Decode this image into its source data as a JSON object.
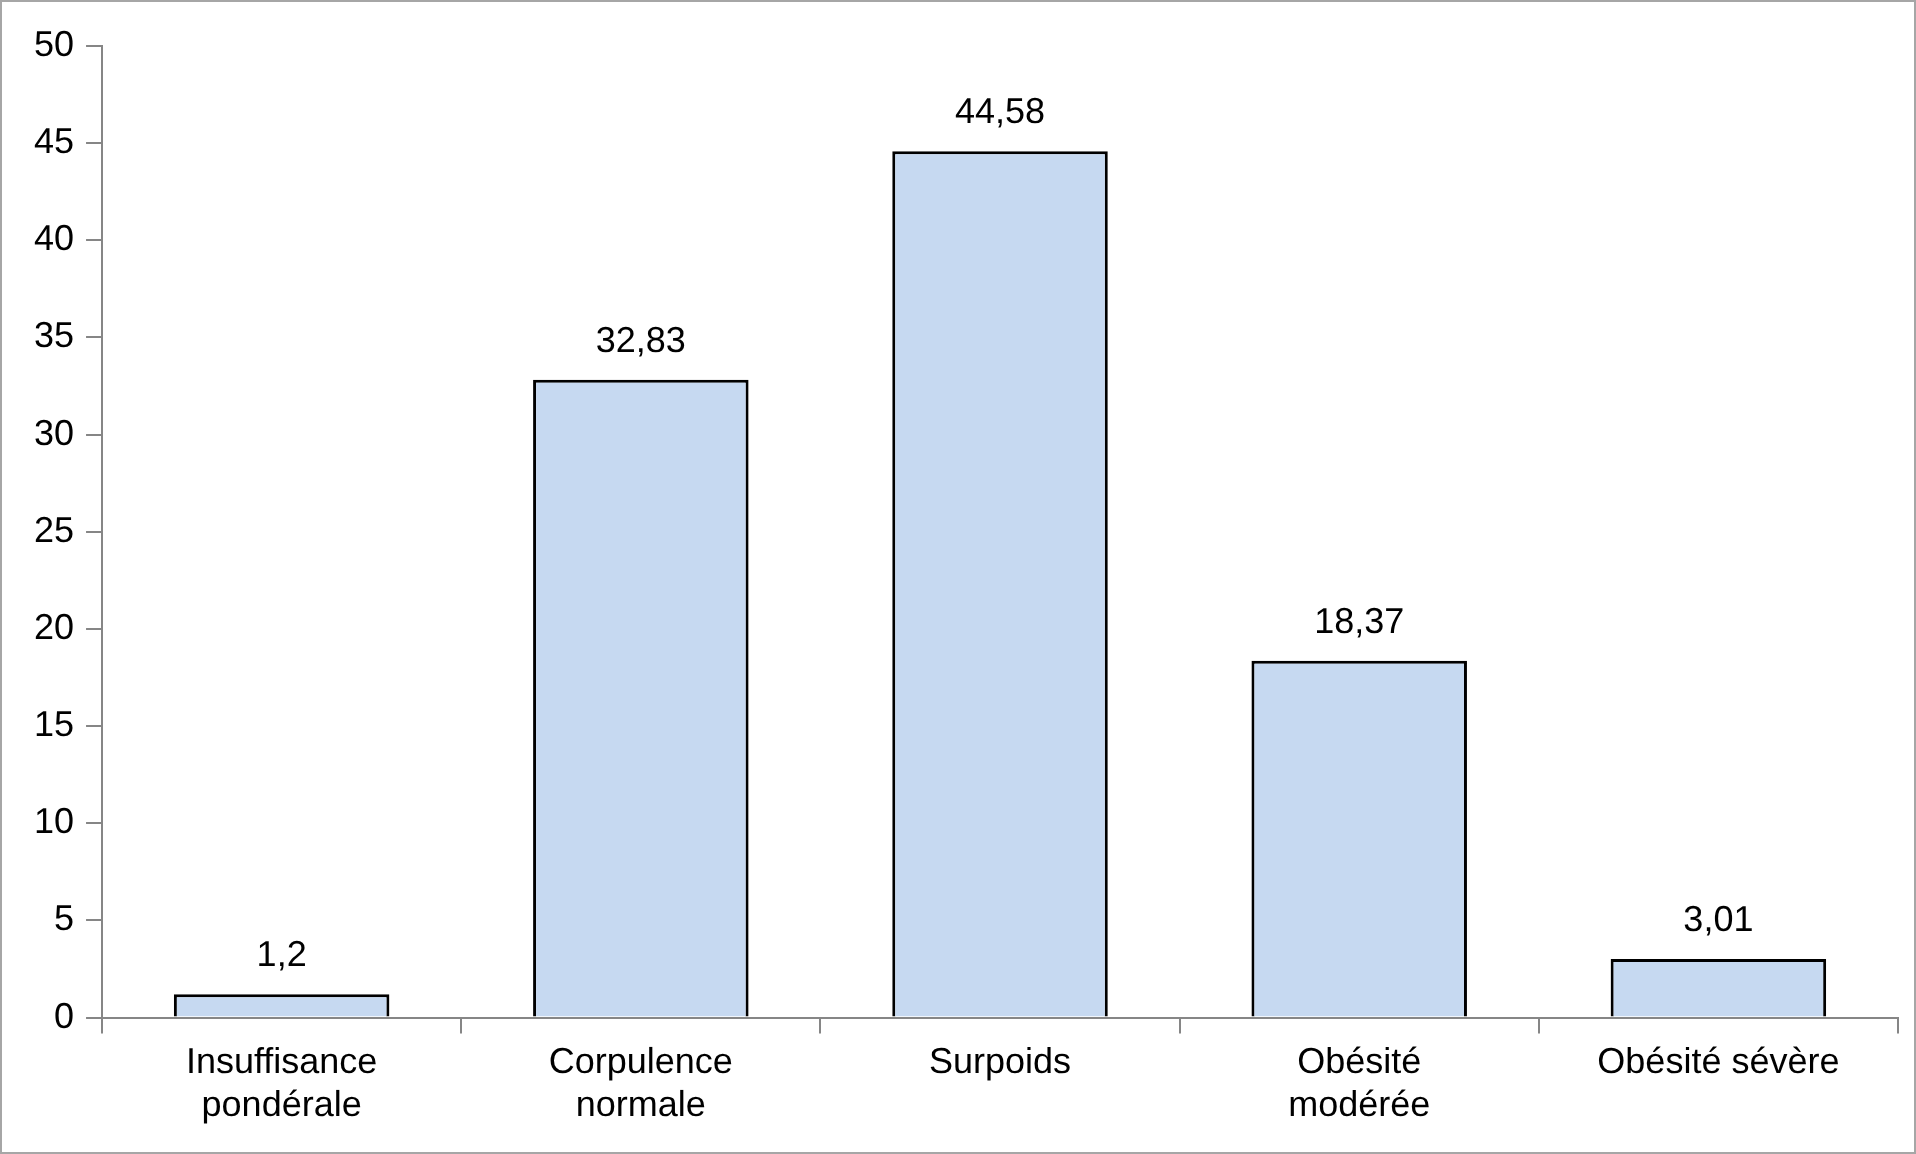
{
  "chart_data": {
    "type": "bar",
    "categories": [
      "Insuffisance pondérale",
      "Corpulence normale",
      "Surpoids",
      "Obésité modérée",
      "Obésité sévère"
    ],
    "values": [
      1.2,
      32.83,
      44.58,
      18.37,
      3.01
    ],
    "value_labels": [
      "1,2",
      "32,83",
      "44,58",
      "18,37",
      "3,01"
    ],
    "color": "#c6d9f1",
    "ylim": [
      0,
      50
    ],
    "yticks": [
      0,
      5,
      10,
      15,
      20,
      25,
      30,
      35,
      40,
      45,
      50
    ],
    "grid": false,
    "legend": false
  }
}
